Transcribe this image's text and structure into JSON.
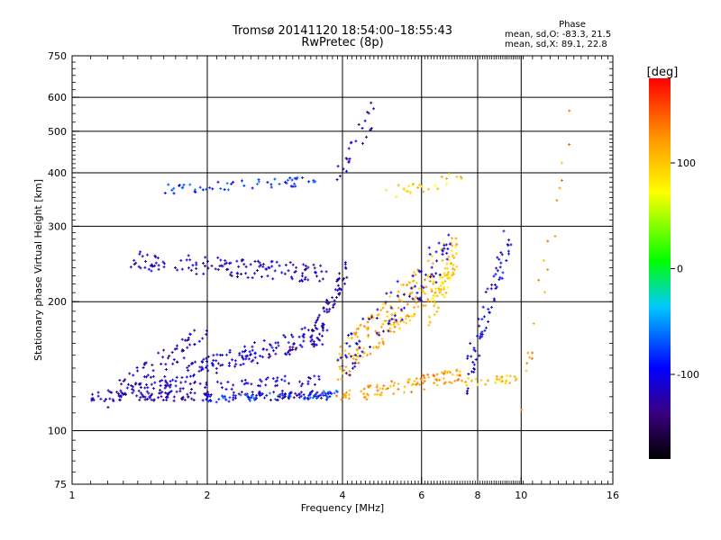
{
  "chart_data": {
    "type": "scatter",
    "title": "Tromsø 20141120 18:54:00–18:55:43",
    "subtitle": "RwPretec (8p)",
    "xlabel": "Frequency [MHz]",
    "ylabel": "Stationary phase Virtual Height [km]",
    "x_scale": "log",
    "y_scale": "log",
    "xlim": [
      1,
      16
    ],
    "ylim": [
      75,
      750
    ],
    "x_ticks": [
      1,
      2,
      4,
      6,
      8,
      10,
      16
    ],
    "y_ticks": [
      75,
      100,
      200,
      300,
      400,
      500,
      600,
      750
    ],
    "x_grid": [
      2,
      4,
      6,
      8,
      10
    ],
    "y_grid": [
      100,
      200,
      300,
      400,
      500,
      600
    ],
    "grid": true,
    "phase_stats": {
      "title": "Phase",
      "o_line": "mean, sd,O: -83.3, 21.5",
      "x_line": "mean, sd,X:  89.1, 22.8"
    },
    "colorbar": {
      "label": "[deg]",
      "range": [
        -180,
        180
      ],
      "ticks": [
        100,
        0,
        -100
      ],
      "colormap": "rainbow"
    },
    "traces": [
      {
        "name": "",
        "phase": -120,
        "x_range": [
          1.1,
          3.8
        ],
        "h_start": 120,
        "h_end": 121,
        "n": 160,
        "jitter": 0.025
      },
      {
        "name": "",
        "phase": -75,
        "x_range": [
          2.0,
          3.9
        ],
        "h_start": 118,
        "h_end": 122,
        "n": 60,
        "jitter": 0.02
      },
      {
        "name": "",
        "phase": -110,
        "x_range": [
          1.3,
          3.8
        ],
        "h_start": 125,
        "h_end": 132,
        "n": 80,
        "jitter": 0.03
      },
      {
        "name": "",
        "phase": -115,
        "x_range": [
          1.5,
          3.7
        ],
        "h_start": 128,
        "h_end": 163,
        "n": 90,
        "jitter": 0.03
      },
      {
        "name": "",
        "phase": -105,
        "x_range": [
          1.8,
          3.7
        ],
        "h_start": 140,
        "h_end": 175,
        "n": 70,
        "jitter": 0.03
      },
      {
        "name": "",
        "phase": -120,
        "x_range": [
          1.2,
          2.0
        ],
        "h_start": 120,
        "h_end": 170,
        "n": 70,
        "jitter": 0.06
      },
      {
        "name": "",
        "phase": -115,
        "x_range": [
          1.35,
          3.7
        ],
        "h_start": 250,
        "h_end": 232,
        "n": 140,
        "jitter": 0.05
      },
      {
        "name": "",
        "phase": -85,
        "x_range": [
          1.6,
          3.9
        ],
        "h_start": 366,
        "h_end": 385,
        "n": 55,
        "jitter": 0.025
      },
      {
        "name": "",
        "phase": -125,
        "x_range": [
          3.4,
          4.1
        ],
        "h_start": 160,
        "h_end": 240,
        "n": 60,
        "jitter": 0.06
      },
      {
        "name": "",
        "phase": 120,
        "x_range": [
          3.8,
          7.4
        ],
        "h_start": 118,
        "h_end": 135,
        "n": 100,
        "jitter": 0.04
      },
      {
        "name": "",
        "phase": 110,
        "x_range": [
          3.9,
          7.2
        ],
        "h_start": 140,
        "h_end": 260,
        "n": 200,
        "jitter": 0.12
      },
      {
        "name": "",
        "phase": -110,
        "x_range": [
          3.9,
          7.0
        ],
        "h_start": 140,
        "h_end": 270,
        "n": 90,
        "jitter": 0.12
      },
      {
        "name": "",
        "phase": 95,
        "x_range": [
          6.2,
          7.2
        ],
        "h_start": 180,
        "h_end": 260,
        "n": 50,
        "jitter": 0.08
      },
      {
        "name": "",
        "phase": -105,
        "x_range": [
          7.5,
          9.5
        ],
        "h_start": 130,
        "h_end": 300,
        "n": 70,
        "jitter": 0.12
      },
      {
        "name": "",
        "phase": 100,
        "x_range": [
          7.5,
          9.8
        ],
        "h_start": 130,
        "h_end": 132,
        "n": 30,
        "jitter": 0.02
      },
      {
        "name": "",
        "phase": 95,
        "x_range": [
          5.0,
          7.5
        ],
        "h_start": 360,
        "h_end": 390,
        "n": 25,
        "jitter": 0.04
      },
      {
        "name": "",
        "phase": -120,
        "x_range": [
          3.9,
          4.7
        ],
        "h_start": 400,
        "h_end": 560,
        "n": 25,
        "jitter": 0.08
      },
      {
        "name": "",
        "phase": 120,
        "x_range": [
          10.0,
          12.8
        ],
        "h_start": 120,
        "h_end": 490,
        "n": 20,
        "jitter": 0.15
      }
    ]
  }
}
